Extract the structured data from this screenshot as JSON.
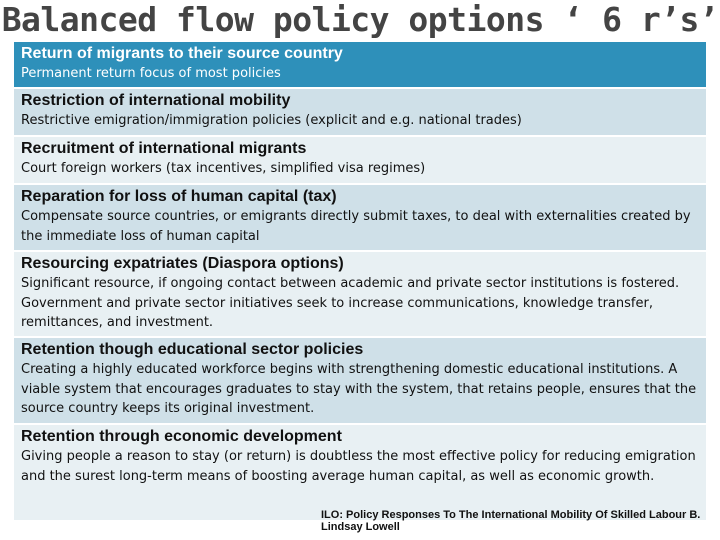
{
  "title": "Balanced flow policy options ‘ 6 r’s’",
  "rows": [
    {
      "heading": "Return of migrants to their source country",
      "description": "Permanent return focus of most policies"
    },
    {
      "heading": "Restriction of international mobility",
      "description": "Restrictive emigration/immigration policies (explicit and e.g. national trades)"
    },
    {
      "heading": "Recruitment of international migrants",
      "description": "Court foreign workers (tax incentives, simplified visa regimes)"
    },
    {
      "heading": "Reparation for loss of human capital (tax)",
      "description": "Compensate source countries, or emigrants directly submit taxes, to deal with externalities created by the immediate loss of human capital"
    },
    {
      "heading": "Resourcing expatriates (Diaspora options)",
      "description": "Significant resource, if ongoing contact between academic and private sector institutions is fostered. Government and private sector initiatives seek to increase communications, knowledge transfer, remittances, and investment."
    },
    {
      "heading": "Retention though educational sector policies",
      "description": "Creating a highly educated workforce begins with strengthening domestic educational institutions. A viable system that encourages graduates to stay with the system, that retains people, ensures that the source country keeps its original investment."
    },
    {
      "heading": "Retention through economic development",
      "description": "Giving people a reason to stay (or return) is doubtless the most effective policy for reducing emigration and the surest long-term means of boosting average human capital, as well as economic growth."
    }
  ],
  "citation": "ILO: Policy Responses To The International Mobility Of Skilled Labour B. Lindsay Lowell",
  "colors": {
    "header_bg": "#2e90ba",
    "row_dark": "#cfe0e8",
    "row_light": "#e8f0f3"
  }
}
